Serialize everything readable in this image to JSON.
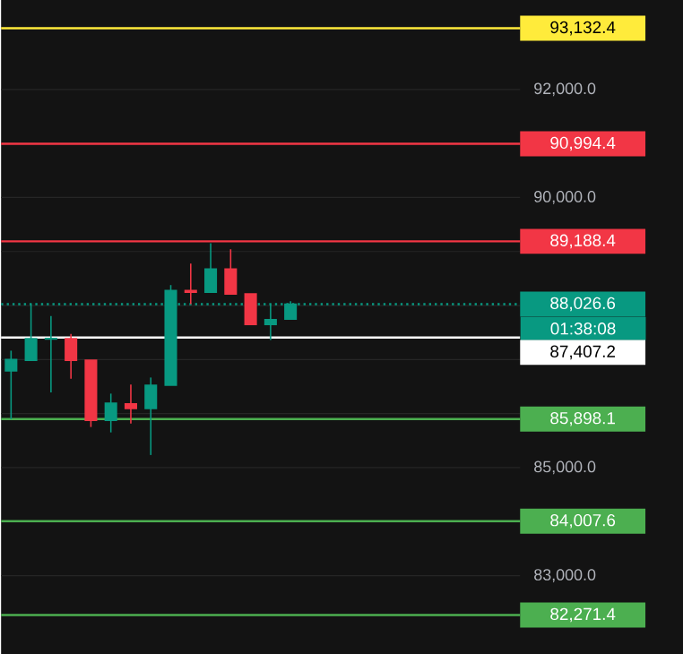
{
  "chart_data": {
    "type": "candlestick",
    "categories": [
      null,
      null,
      null,
      null,
      null,
      null,
      null,
      null,
      null,
      null,
      null,
      null,
      null,
      null,
      null,
      null,
      null,
      null,
      null,
      null,
      null,
      null,
      null,
      null,
      null,
      null
    ],
    "ohlc": [
      [
        86790,
        87165,
        85895,
        86999
      ],
      [
        86988,
        88026,
        86988,
        87386
      ],
      [
        87380,
        87805,
        86392,
        87390
      ],
      [
        87386,
        87474,
        86646,
        86988
      ],
      [
        86988,
        86988,
        85752,
        85873
      ],
      [
        85873,
        86370,
        85652,
        86193
      ],
      [
        86182,
        86536,
        85818,
        86094
      ],
      [
        86094,
        86668,
        85233,
        86525
      ],
      [
        86525,
        88379,
        86525,
        88280
      ],
      [
        88280,
        88777,
        88026,
        88247
      ],
      [
        88247,
        89152,
        88247,
        88678
      ],
      [
        88678,
        89042,
        88214,
        88214
      ],
      [
        88214,
        88214,
        87651,
        87651
      ],
      [
        87651,
        88026,
        87364,
        87739
      ],
      [
        87750,
        88081,
        87750,
        88026.6
      ],
      null,
      null,
      null,
      null,
      null,
      null,
      null,
      null,
      null,
      null,
      null
    ],
    "colors": [
      "#089981",
      "#089981",
      "#089981",
      "#f23645",
      "#f23645",
      "#089981",
      "#f23645",
      "#089981",
      "#089981",
      "#f23645",
      "#089981",
      "#f23645",
      "#f23645",
      "#089981",
      "#089981",
      null,
      null,
      null,
      null,
      null,
      null,
      null,
      null,
      null,
      null,
      null
    ],
    "ylim": [
      81536,
      93656
    ],
    "yticks": [
      {
        "value": 83000,
        "label": "83,000.0"
      },
      {
        "value": 84000,
        "label": null
      },
      {
        "value": 85000,
        "label": "85,000.0"
      },
      {
        "value": 86000,
        "label": null
      },
      {
        "value": 87000,
        "label": null
      },
      {
        "value": 88000,
        "label": null
      },
      {
        "value": 89000,
        "label": null
      },
      {
        "value": 90000,
        "label": "90,000.0"
      },
      {
        "value": 91000,
        "label": null
      },
      {
        "value": 92000,
        "label": "92,000.0"
      }
    ],
    "grid": "y",
    "tick_labels": "y",
    "ref_lines": [
      {
        "axis": "y",
        "value": 93132.4,
        "label": "93,132.4",
        "color": "#ffeb3b"
      },
      {
        "axis": "y",
        "value": 90994.4,
        "label": "90,994.4",
        "color": "#f23645"
      },
      {
        "axis": "y",
        "value": 89188.4,
        "label": "89,188.4",
        "color": "#f23645"
      },
      {
        "axis": "y",
        "value": 88026.6,
        "label": "88,026.6",
        "color": "#089981",
        "line_style": "dotted"
      },
      {
        "axis": "y",
        "value": 87407.2,
        "label": "87,407.2",
        "color": "#ffffff"
      },
      {
        "axis": "y",
        "value": 85898.1,
        "label": "85,898.1",
        "color": "#4caf50"
      },
      {
        "axis": "y",
        "value": 84007.6,
        "label": "84,007.6",
        "color": "#4caf50"
      },
      {
        "axis": "y",
        "value": 82271.4,
        "label": "82,271.4",
        "color": "#4caf50"
      }
    ],
    "annotations": [
      "01:38:08"
    ]
  }
}
